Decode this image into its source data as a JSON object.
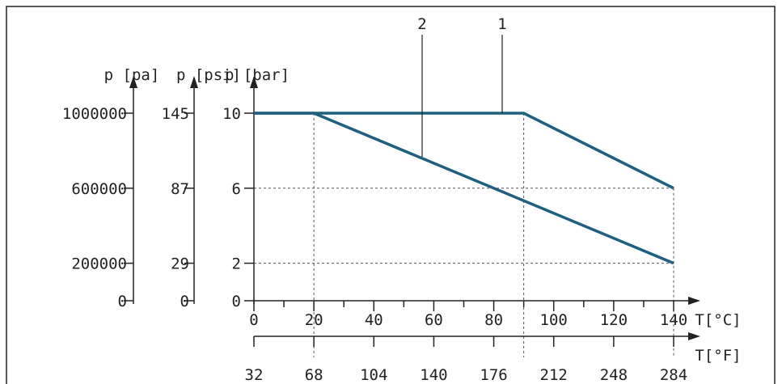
{
  "colors": {
    "curve": "#1f5f7f",
    "axis": "#222222",
    "grid": "#555555",
    "frame": "#222222"
  },
  "chart_data": {
    "type": "line",
    "grid": "dashed reference lines at curve corners",
    "axes": {
      "x_celsius": {
        "label": "T[°C]",
        "range": [
          0,
          140
        ],
        "ticks": [
          0,
          20,
          40,
          60,
          80,
          100,
          120,
          140
        ],
        "minor_step": 10
      },
      "x_fahrenheit": {
        "label": "T[°F]",
        "range": [
          32,
          284
        ],
        "ticks": [
          32,
          68,
          104,
          140,
          176,
          212,
          248,
          284
        ]
      },
      "y_bar": {
        "label": "p [bar]",
        "range": [
          0,
          10
        ],
        "ticks": [
          0,
          2,
          6,
          10
        ]
      },
      "y_psi": {
        "label": "p [psi]",
        "ticks": [
          0,
          29,
          87,
          145
        ]
      },
      "y_pa": {
        "label": "p [pa]",
        "ticks": [
          0,
          200000,
          600000,
          1000000
        ]
      }
    },
    "series": [
      {
        "name": "1",
        "points": [
          [
            0,
            10
          ],
          [
            90,
            10
          ],
          [
            140,
            6
          ]
        ]
      },
      {
        "name": "2",
        "points": [
          [
            0,
            10
          ],
          [
            20,
            10
          ],
          [
            140,
            2
          ]
        ]
      }
    ],
    "reference_lines": {
      "vertical": [
        20,
        90,
        140
      ],
      "horizontal": [
        6,
        2
      ]
    },
    "callouts": [
      {
        "label": "1",
        "series": "1",
        "at": [
          82,
          10
        ]
      },
      {
        "label": "2",
        "series": "2",
        "at": [
          56,
          7.67
        ]
      }
    ]
  }
}
